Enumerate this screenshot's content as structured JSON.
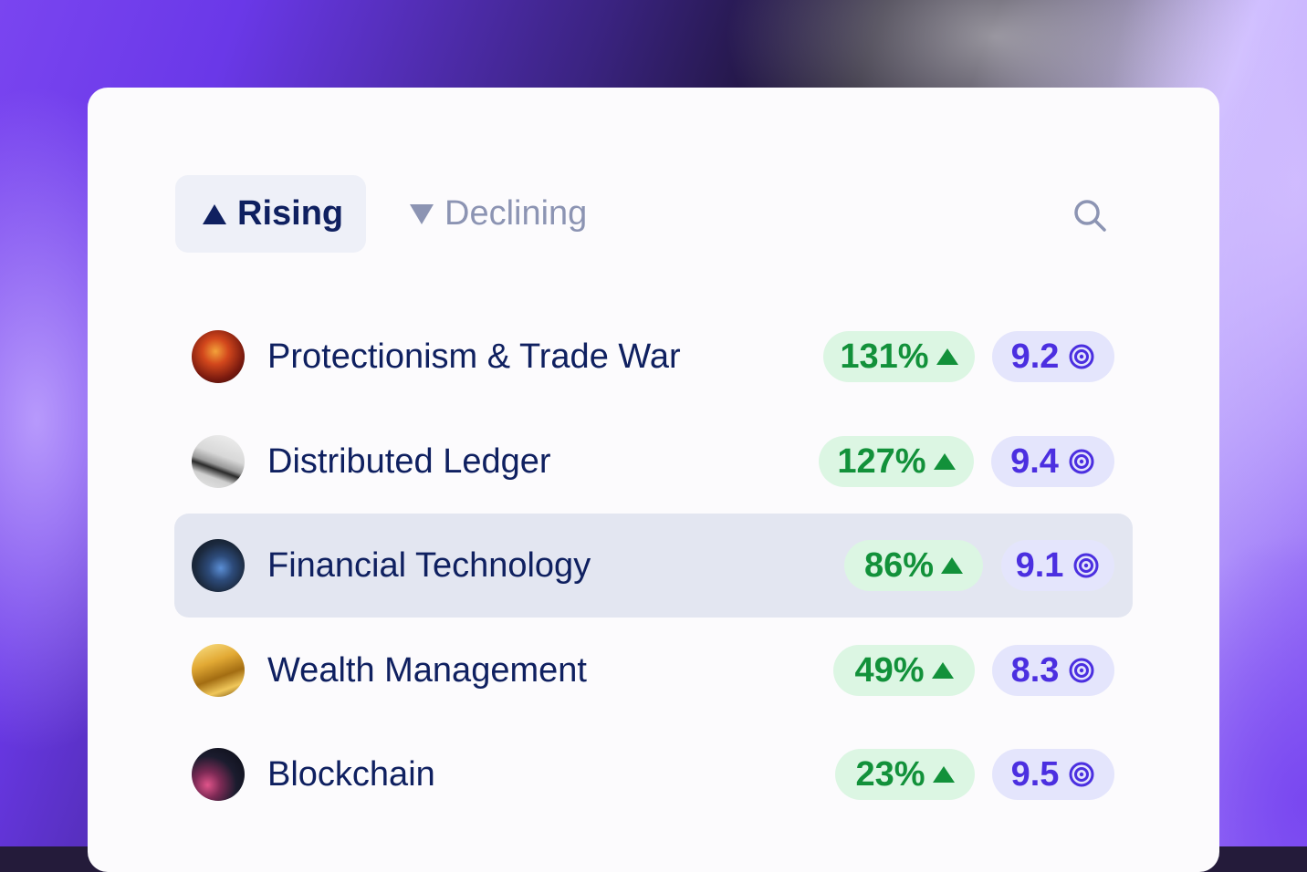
{
  "tabs": {
    "rising_label": "Rising",
    "declining_label": "Declining"
  },
  "search": {
    "icon": "search-icon"
  },
  "rows": [
    {
      "label": "Protectionism & Trade War",
      "change": "131%",
      "score": "9.2",
      "selected": false,
      "icon": "trade-war-thumbnail"
    },
    {
      "label": "Distributed Ledger",
      "change": "127%",
      "score": "9.4",
      "selected": false,
      "icon": "ledger-device-thumbnail"
    },
    {
      "label": "Financial Technology",
      "change": "86%",
      "score": "9.1",
      "selected": true,
      "icon": "phone-app-thumbnail"
    },
    {
      "label": "Wealth Management",
      "change": "49%",
      "score": "8.3",
      "selected": false,
      "icon": "gold-bars-thumbnail"
    },
    {
      "label": "Blockchain",
      "change": "23%",
      "score": "9.5",
      "selected": false,
      "icon": "network-nodes-thumbnail"
    }
  ],
  "colors": {
    "text_primary": "#0f2060",
    "text_muted": "#8c94b3",
    "positive": "#12913a",
    "positive_bg": "#dcf6e3",
    "score": "#4b2fe0",
    "score_bg": "#e4e5fc",
    "selected_row_bg": "#e3e6f1"
  }
}
